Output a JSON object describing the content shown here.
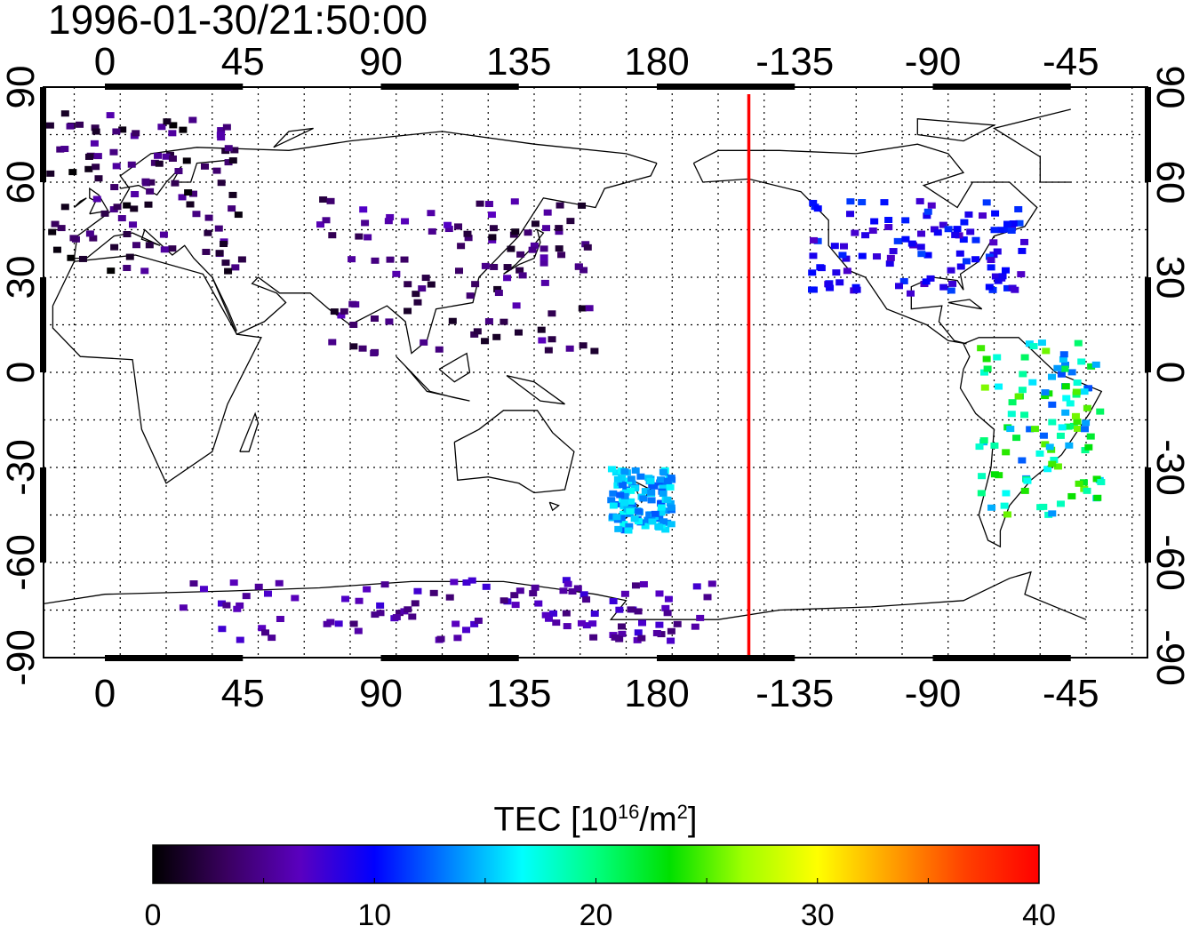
{
  "header": {
    "timestamp": "1996-01-30/21:50:00"
  },
  "map": {
    "lon_tick_labels": [
      "0",
      "45",
      "90",
      "135",
      "180",
      "-135",
      "-90",
      "-45"
    ],
    "lat_tick_labels_left": [
      "90",
      "60",
      "30",
      "0",
      "-30",
      "-60",
      "-90"
    ],
    "lat_tick_labels_right": [
      "90",
      "60",
      "30",
      "0",
      "-30",
      "-60",
      "-90"
    ],
    "grid": "dotted",
    "terminator_line": {
      "longitude": -150,
      "color": "#ff0000"
    },
    "observation_clusters": [
      {
        "region": "Europe",
        "lon": [
          -18,
          45
        ],
        "lat": [
          32,
          82
        ],
        "tec": [
          0,
          6
        ]
      },
      {
        "region": "Asia",
        "lon": [
          70,
          160
        ],
        "lat": [
          5,
          55
        ],
        "tec": [
          1,
          7
        ]
      },
      {
        "region": "North America",
        "lon": [
          -130,
          -60
        ],
        "lat": [
          25,
          55
        ],
        "tec": [
          7,
          12
        ]
      },
      {
        "region": "South America",
        "lon": [
          -75,
          -35
        ],
        "lat": [
          -45,
          10
        ],
        "tec": [
          12,
          26
        ]
      },
      {
        "region": "New Zealand",
        "lon": [
          165,
          185
        ],
        "lat": [
          -50,
          -30
        ],
        "tec": [
          12,
          17
        ]
      },
      {
        "region": "Antarctica",
        "lon": [
          25,
          200
        ],
        "lat": [
          -85,
          -65
        ],
        "tec": [
          4,
          8
        ]
      }
    ]
  },
  "colorbar": {
    "label": "TEC  [10",
    "label_exp": "16",
    "label_unit": "/m",
    "label_unit_exp": "2",
    "label_end": "]",
    "min": 0,
    "max": 40,
    "tick_labels": [
      "0",
      "10",
      "20",
      "30",
      "40"
    ],
    "colors": [
      "#000000",
      "#3a0060",
      "#5a00c0",
      "#0000ff",
      "#0080ff",
      "#00ffff",
      "#00ff80",
      "#00e000",
      "#a0ff00",
      "#ffff00",
      "#ffa000",
      "#ff4000",
      "#ff0000"
    ]
  }
}
